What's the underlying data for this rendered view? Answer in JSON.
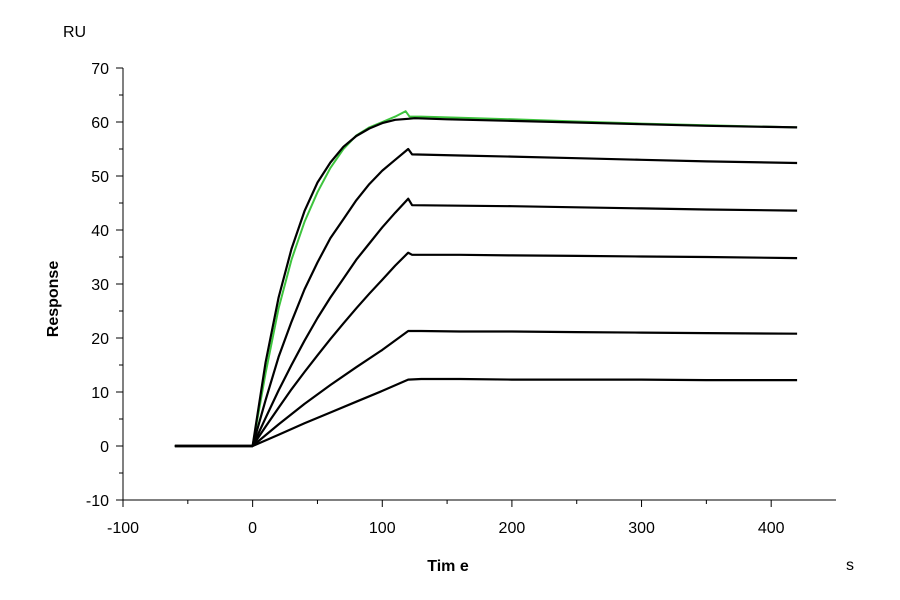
{
  "chart_data": {
    "type": "line",
    "title": "",
    "xlabel": "Tim e",
    "ylabel": "Response",
    "x_unit": "s",
    "y_unit": "RU",
    "xlim": [
      -100,
      450
    ],
    "ylim": [
      -10,
      70
    ],
    "x_ticks": [
      -100,
      0,
      100,
      200,
      300,
      400
    ],
    "y_ticks": [
      -10,
      0,
      10,
      20,
      30,
      40,
      50,
      60,
      70
    ],
    "grid": false,
    "legend": "none",
    "colors": {
      "fit": "#000000",
      "axis": "#000000",
      "measured": [
        "#3ec43e",
        "#8b1a8b",
        "#d9a520",
        "#20b2b2",
        "#b030b0",
        "#2030a0"
      ]
    },
    "baseline_x": [
      -60,
      0
    ],
    "association_end_s": 120,
    "end_s": 420,
    "series": [
      {
        "kind": "measured",
        "x": [
          -60,
          0,
          10,
          20,
          30,
          40,
          50,
          60,
          70,
          80,
          90,
          100,
          110,
          118,
          121,
          130,
          160,
          200,
          250,
          300,
          350,
          420
        ],
        "values": [
          0,
          0,
          13.5,
          25.5,
          34.5,
          41.5,
          47.0,
          51.5,
          55.0,
          57.5,
          59.0,
          60.0,
          61.0,
          62.0,
          61.0,
          61.0,
          60.8,
          60.5,
          60.1,
          59.7,
          59.4,
          59.0
        ]
      },
      {
        "kind": "fit",
        "x": [
          -60,
          0,
          10,
          20,
          30,
          40,
          50,
          60,
          70,
          80,
          90,
          100,
          110,
          120,
          125,
          150,
          200,
          250,
          300,
          350,
          420
        ],
        "values": [
          0,
          0,
          15.5,
          27.5,
          36.5,
          43.5,
          48.8,
          52.5,
          55.4,
          57.4,
          58.8,
          59.8,
          60.4,
          60.6,
          60.7,
          60.5,
          60.2,
          59.9,
          59.6,
          59.3,
          59.0
        ]
      },
      {
        "kind": "fit",
        "x": [
          -60,
          0,
          10,
          20,
          30,
          40,
          50,
          60,
          70,
          80,
          90,
          100,
          110,
          120,
          123,
          160,
          200,
          250,
          300,
          350,
          420
        ],
        "values": [
          0,
          0,
          8.5,
          16.5,
          23.0,
          29.0,
          34.0,
          38.5,
          42.0,
          45.5,
          48.5,
          51.0,
          53.0,
          55.0,
          54.0,
          53.8,
          53.6,
          53.3,
          53.0,
          52.7,
          52.4
        ]
      },
      {
        "kind": "fit",
        "x": [
          -60,
          0,
          10,
          20,
          30,
          40,
          50,
          60,
          70,
          80,
          90,
          100,
          110,
          120,
          123,
          160,
          200,
          250,
          300,
          350,
          420
        ],
        "values": [
          0,
          0,
          5.2,
          10.3,
          15.0,
          19.5,
          23.7,
          27.5,
          31.0,
          34.5,
          37.5,
          40.5,
          43.2,
          45.8,
          44.6,
          44.5,
          44.4,
          44.2,
          44.0,
          43.8,
          43.6
        ]
      },
      {
        "kind": "fit",
        "x": [
          -60,
          0,
          10,
          20,
          30,
          40,
          50,
          60,
          70,
          80,
          90,
          100,
          110,
          120,
          123,
          160,
          200,
          250,
          300,
          350,
          420
        ],
        "values": [
          0,
          0,
          3.6,
          7.1,
          10.5,
          13.7,
          16.8,
          19.8,
          22.7,
          25.5,
          28.2,
          30.8,
          33.4,
          35.8,
          35.4,
          35.4,
          35.3,
          35.2,
          35.1,
          35.0,
          34.8
        ]
      },
      {
        "kind": "fit",
        "x": [
          -60,
          0,
          20,
          40,
          60,
          80,
          100,
          120,
          130,
          160,
          200,
          250,
          300,
          350,
          420
        ],
        "values": [
          0,
          0,
          4.0,
          7.8,
          11.3,
          14.6,
          17.8,
          21.3,
          21.3,
          21.2,
          21.2,
          21.1,
          21.0,
          20.9,
          20.8
        ]
      },
      {
        "kind": "fit",
        "x": [
          -60,
          0,
          20,
          40,
          60,
          80,
          100,
          120,
          130,
          160,
          200,
          250,
          300,
          350,
          420
        ],
        "values": [
          0,
          0,
          2.1,
          4.2,
          6.2,
          8.2,
          10.2,
          12.3,
          12.4,
          12.4,
          12.3,
          12.3,
          12.3,
          12.2,
          12.2
        ]
      }
    ]
  }
}
